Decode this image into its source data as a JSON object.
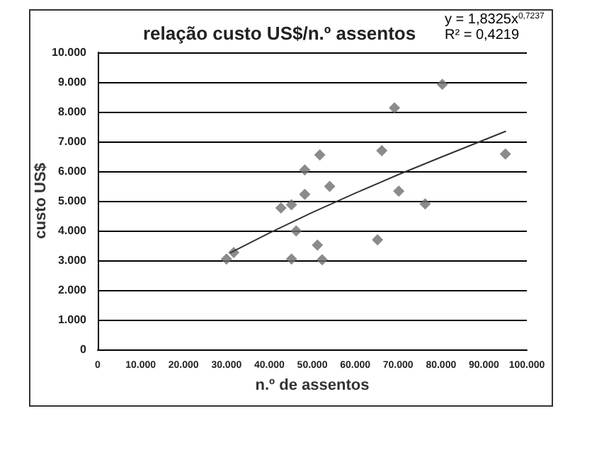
{
  "chart_data": {
    "type": "scatter",
    "title": "relação custo US$/n.º assentos",
    "xlabel": "n.º de assentos",
    "ylabel": "custo US$",
    "annotations": [
      "y = 1,8325x$^{0,7237}$",
      "R² = 0,4219"
    ],
    "series": [
      {
        "type": "scatter",
        "color": "#6e6e6e",
        "marker": "diamond",
        "x": [
          30000,
          31700,
          42700,
          45150,
          46250,
          45150,
          48250,
          48250,
          51200,
          51750,
          52300,
          54050,
          65200,
          66200,
          69150,
          70150,
          76300,
          80300,
          95000
        ],
        "values": [
          3040,
          3260,
          4760,
          4870,
          3990,
          3040,
          5220,
          6040,
          3510,
          6550,
          3020,
          5490,
          3690,
          6690,
          8130,
          5330,
          4900,
          8920,
          6580
        ]
      },
      {
        "type": "line",
        "color": "#333333",
        "marker": "none",
        "x": [
          31000,
          40000,
          50000,
          60000,
          70000,
          80000,
          95000
        ],
        "values": [
          3260,
          3920,
          4610,
          5260,
          5880,
          6470,
          7340
        ]
      }
    ],
    "xlim": [
      0,
      100000
    ],
    "xticks": [
      0,
      {
        "value": 10000,
        "label": "10.000"
      },
      {
        "value": 20000,
        "label": "20.000"
      },
      {
        "value": 30000,
        "label": "30.000"
      },
      {
        "value": 40000,
        "label": "40.000"
      },
      {
        "value": 50000,
        "label": "50.000"
      },
      {
        "value": 60000,
        "label": "60.000"
      },
      {
        "value": 70000,
        "label": "70.000"
      },
      {
        "value": 80000,
        "label": "80.000"
      },
      {
        "value": 90000,
        "label": "90.000"
      },
      {
        "value": 100000,
        "label": "100.000"
      }
    ],
    "ylim": [
      0,
      10000
    ],
    "yticks": [
      0,
      {
        "value": 1000,
        "label": "1.000"
      },
      {
        "value": 2000,
        "label": "2.000"
      },
      {
        "value": 3000,
        "label": "3.000"
      },
      {
        "value": 4000,
        "label": "4.000"
      },
      {
        "value": 5000,
        "label": "5.000"
      },
      {
        "value": 6000,
        "label": "6.000"
      },
      {
        "value": 7000,
        "label": "7.000"
      },
      {
        "value": 8000,
        "label": "8.000"
      },
      {
        "value": 9000,
        "label": "9.000"
      },
      {
        "value": 10000,
        "label": "10.000"
      }
    ],
    "grid": "y"
  }
}
